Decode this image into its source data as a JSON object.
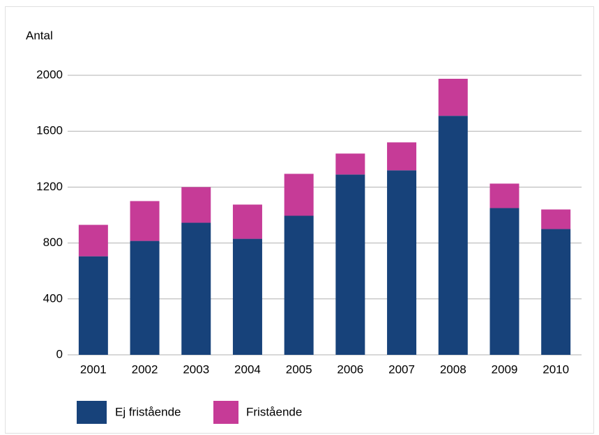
{
  "chart_data": {
    "type": "stacked_bar",
    "y_label": "Antal",
    "categories": [
      "2001",
      "2002",
      "2003",
      "2004",
      "2005",
      "2006",
      "2007",
      "2008",
      "2009",
      "2010"
    ],
    "series": [
      {
        "name": "Ej fristående",
        "color": "#17427a",
        "values": [
          705,
          815,
          945,
          830,
          995,
          1290,
          1320,
          1710,
          1050,
          900
        ]
      },
      {
        "name": "Fristående",
        "color": "#c63b97",
        "values": [
          225,
          285,
          255,
          245,
          300,
          150,
          200,
          265,
          175,
          140
        ]
      }
    ],
    "ylim": [
      0,
      2000
    ],
    "yticks": [
      0,
      400,
      800,
      1200,
      1600,
      2000
    ],
    "grid": true,
    "legend": "bottom"
  }
}
